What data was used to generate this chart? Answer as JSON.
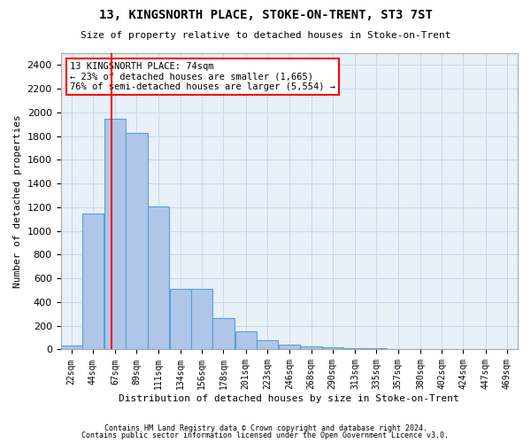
{
  "title": "13, KINGSNORTH PLACE, STOKE-ON-TRENT, ST3 7ST",
  "subtitle": "Size of property relative to detached houses in Stoke-on-Trent",
  "xlabel": "Distribution of detached houses by size in Stoke-on-Trent",
  "ylabel": "Number of detached properties",
  "bar_edges": [
    22,
    44,
    67,
    89,
    111,
    134,
    156,
    178,
    201,
    223,
    246,
    268,
    290,
    313,
    335,
    357,
    380,
    402,
    424,
    447,
    469
  ],
  "bar_heights": [
    35,
    1150,
    1950,
    1830,
    1210,
    510,
    510,
    265,
    150,
    80,
    40,
    25,
    15,
    10,
    8,
    5,
    5,
    3,
    3,
    2,
    2
  ],
  "bar_color": "#aec6e8",
  "bar_edgecolor": "#5a9fd4",
  "grid_color": "#c8d8ec",
  "background_color": "#e8f0f8",
  "red_line_x": 74,
  "annotation_text": "13 KINGSNORTH PLACE: 74sqm\n← 23% of detached houses are smaller (1,665)\n76% of semi-detached houses are larger (5,554) →",
  "annotation_box_color": "white",
  "annotation_box_edgecolor": "red",
  "ylim": [
    0,
    2500
  ],
  "yticks": [
    0,
    200,
    400,
    600,
    800,
    1000,
    1200,
    1400,
    1600,
    1800,
    2000,
    2200,
    2400
  ],
  "footer1": "Contains HM Land Registry data © Crown copyright and database right 2024.",
  "footer2": "Contains public sector information licensed under the Open Government Licence v3.0."
}
